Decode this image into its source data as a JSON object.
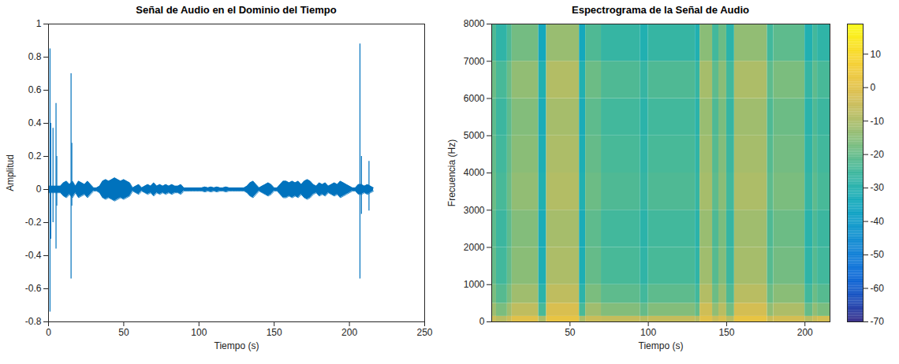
{
  "chart_data": [
    {
      "type": "line",
      "title": "Señal de Audio en el Dominio del Tiempo",
      "xlabel": "Tiempo (s)",
      "ylabel": "Amplitud",
      "xlim": [
        0,
        250
      ],
      "xticks": [
        0,
        50,
        100,
        150,
        200,
        250
      ],
      "ylim": [
        -0.8,
        1
      ],
      "yticks": [
        -0.8,
        -0.6,
        -0.4,
        -0.2,
        0,
        0.2,
        0.4,
        0.6,
        0.8,
        1
      ],
      "grid": false,
      "color": "#0072bd",
      "envelope": {
        "x": [
          0,
          2,
          4,
          6,
          8,
          10,
          12,
          14,
          16,
          18,
          20,
          22,
          24,
          26,
          28,
          30,
          32,
          34,
          36,
          38,
          40,
          42,
          44,
          46,
          48,
          50,
          52,
          54,
          56,
          58,
          60,
          62,
          64,
          66,
          68,
          70,
          72,
          74,
          76,
          78,
          80,
          82,
          84,
          86,
          88,
          90,
          92,
          94,
          96,
          98,
          100,
          102,
          104,
          106,
          108,
          110,
          112,
          114,
          116,
          118,
          120,
          122,
          124,
          126,
          128,
          130,
          132,
          134,
          136,
          138,
          140,
          142,
          144,
          146,
          148,
          150,
          152,
          154,
          156,
          158,
          160,
          162,
          164,
          166,
          168,
          170,
          172,
          174,
          176,
          178,
          180,
          182,
          184,
          186,
          188,
          190,
          192,
          194,
          196,
          198,
          200,
          202,
          204,
          206,
          208,
          210,
          212,
          214,
          216
        ],
        "upper": [
          0.02,
          0.02,
          0.02,
          0.02,
          0.02,
          0.04,
          0.05,
          0.03,
          0.05,
          0.02,
          0.05,
          0.04,
          0.03,
          0.05,
          0.03,
          0.01,
          0.01,
          0.02,
          0.05,
          0.06,
          0.05,
          0.06,
          0.07,
          0.06,
          0.05,
          0.06,
          0.05,
          0.04,
          0.01,
          0.02,
          0.03,
          0.01,
          0.02,
          0.03,
          0.02,
          0.04,
          0.02,
          0.03,
          0.02,
          0.03,
          0.02,
          0.03,
          0.02,
          0.02,
          0.03,
          0.01,
          0.01,
          0.01,
          0.01,
          0.01,
          0.01,
          0.01,
          0.015,
          0.01,
          0.015,
          0.01,
          0.015,
          0.01,
          0.01,
          0.015,
          0.01,
          0.01,
          0.01,
          0.01,
          0.01,
          0.01,
          0.02,
          0.04,
          0.05,
          0.03,
          0.01,
          0.02,
          0.03,
          0.04,
          0.03,
          0.01,
          0.01,
          0.03,
          0.05,
          0.05,
          0.04,
          0.05,
          0.04,
          0.05,
          0.03,
          0.05,
          0.06,
          0.05,
          0.03,
          0.02,
          0.04,
          0.03,
          0.04,
          0.02,
          0.03,
          0.04,
          0.03,
          0.05,
          0.04,
          0.03,
          0.02,
          0.01,
          0.01,
          0.03,
          0.03,
          0.02,
          0.03,
          0.02,
          0.01
        ],
        "lower": [
          -0.02,
          -0.02,
          -0.02,
          -0.02,
          -0.02,
          -0.04,
          -0.05,
          -0.03,
          -0.05,
          -0.02,
          -0.05,
          -0.04,
          -0.03,
          -0.05,
          -0.03,
          -0.01,
          -0.01,
          -0.02,
          -0.05,
          -0.06,
          -0.05,
          -0.06,
          -0.07,
          -0.06,
          -0.05,
          -0.06,
          -0.05,
          -0.04,
          -0.01,
          -0.02,
          -0.03,
          -0.01,
          -0.02,
          -0.03,
          -0.02,
          -0.04,
          -0.02,
          -0.03,
          -0.02,
          -0.03,
          -0.02,
          -0.03,
          -0.02,
          -0.02,
          -0.03,
          -0.01,
          -0.01,
          -0.01,
          -0.01,
          -0.01,
          -0.01,
          -0.01,
          -0.015,
          -0.01,
          -0.015,
          -0.01,
          -0.015,
          -0.01,
          -0.01,
          -0.015,
          -0.01,
          -0.01,
          -0.01,
          -0.01,
          -0.01,
          -0.01,
          -0.02,
          -0.04,
          -0.05,
          -0.03,
          -0.01,
          -0.02,
          -0.03,
          -0.04,
          -0.03,
          -0.01,
          -0.01,
          -0.03,
          -0.05,
          -0.05,
          -0.04,
          -0.05,
          -0.04,
          -0.05,
          -0.03,
          -0.05,
          -0.06,
          -0.05,
          -0.03,
          -0.02,
          -0.04,
          -0.03,
          -0.04,
          -0.02,
          -0.03,
          -0.04,
          -0.03,
          -0.05,
          -0.04,
          -0.03,
          -0.02,
          -0.01,
          -0.01,
          -0.03,
          -0.03,
          -0.02,
          -0.03,
          -0.02,
          -0.01
        ]
      },
      "spikes": {
        "x": [
          1,
          1.5,
          3,
          5,
          5.5,
          15,
          15.5,
          207,
          208,
          213
        ],
        "upper": [
          0.85,
          0.4,
          0.37,
          0.52,
          0.2,
          0.7,
          0.28,
          0.88,
          0.2,
          0.17
        ],
        "lower": [
          -0.74,
          -0.3,
          -0.2,
          -0.36,
          -0.1,
          -0.54,
          -0.1,
          -0.54,
          -0.15,
          -0.13
        ]
      }
    },
    {
      "type": "heatmap",
      "title": "Espectrograma de la Señal de Audio",
      "xlabel": "Tiempo (s)",
      "ylabel": "Frecuencia (Hz)",
      "xlim": [
        0,
        216
      ],
      "xticks": [
        50,
        100,
        150,
        200
      ],
      "ylim": [
        0,
        8000
      ],
      "yticks": [
        0,
        1000,
        2000,
        3000,
        4000,
        5000,
        6000,
        7000,
        8000
      ],
      "grid": false,
      "time_edges": [
        0,
        3,
        10,
        13,
        30,
        35,
        56,
        60,
        70,
        95,
        100,
        130,
        133,
        141,
        145,
        150,
        155,
        176,
        180,
        200,
        205,
        208,
        216
      ],
      "freq_edges": [
        0,
        150,
        500,
        1000,
        2000,
        3000,
        4000,
        5000,
        6000,
        7000,
        8000
      ],
      "cells": [
        [
          -5,
          -8,
          -5,
          0,
          -10,
          2,
          -10,
          -5,
          -6,
          -8,
          -6,
          -8,
          0,
          -5,
          -2,
          -8,
          2,
          -5,
          -3,
          -8,
          -5,
          -3
        ],
        [
          -12,
          -17,
          -12,
          -7,
          -24,
          -2,
          -24,
          -12,
          -16,
          -20,
          -16,
          -20,
          -4,
          -14,
          -8,
          -18,
          -3,
          -14,
          -10,
          -20,
          -14,
          -17
        ],
        [
          -17,
          -22,
          -17,
          -12,
          -29,
          -7,
          -29,
          -17,
          -21,
          -25,
          -21,
          -25,
          -9,
          -19,
          -13,
          -23,
          -8,
          -19,
          -15,
          -25,
          -19,
          -22
        ],
        [
          -20,
          -25,
          -20,
          -15,
          -32,
          -10,
          -32,
          -20,
          -24,
          -28,
          -24,
          -28,
          -12,
          -22,
          -16,
          -26,
          -11,
          -22,
          -18,
          -28,
          -22,
          -25
        ],
        [
          -21,
          -26,
          -21,
          -16,
          -33,
          -11,
          -33,
          -21,
          -25,
          -29,
          -25,
          -29,
          -13,
          -23,
          -17,
          -27,
          -12,
          -23,
          -19,
          -29,
          -23,
          -26
        ],
        [
          -19,
          -24,
          -19,
          -14,
          -31,
          -9,
          -31,
          -19,
          -23,
          -27,
          -23,
          -27,
          -11,
          -21,
          -15,
          -25,
          -10,
          -21,
          -17,
          -27,
          -21,
          -24
        ],
        [
          -20,
          -25,
          -20,
          -15,
          -32,
          -10,
          -32,
          -20,
          -24,
          -28,
          -24,
          -28,
          -12,
          -22,
          -16,
          -26,
          -11,
          -22,
          -18,
          -28,
          -22,
          -25
        ],
        [
          -21,
          -26,
          -21,
          -16,
          -33,
          -11,
          -33,
          -21,
          -25,
          -29,
          -25,
          -29,
          -13,
          -23,
          -17,
          -27,
          -12,
          -23,
          -19,
          -29,
          -23,
          -26
        ],
        [
          -19,
          -24,
          -19,
          -14,
          -31,
          -9,
          -31,
          -19,
          -23,
          -27,
          -23,
          -27,
          -11,
          -21,
          -15,
          -25,
          -10,
          -21,
          -17,
          -27,
          -21,
          -24
        ],
        [
          -23,
          -28,
          -23,
          -18,
          -35,
          -13,
          -35,
          -23,
          -27,
          -31,
          -27,
          -31,
          -15,
          -25,
          -19,
          -29,
          -14,
          -25,
          -21,
          -31,
          -25,
          -28
        ]
      ],
      "colorbar": {
        "range": [
          -70,
          19
        ],
        "ticks": [
          -70,
          -60,
          -50,
          -40,
          -30,
          -20,
          -10,
          0,
          10
        ]
      }
    }
  ]
}
